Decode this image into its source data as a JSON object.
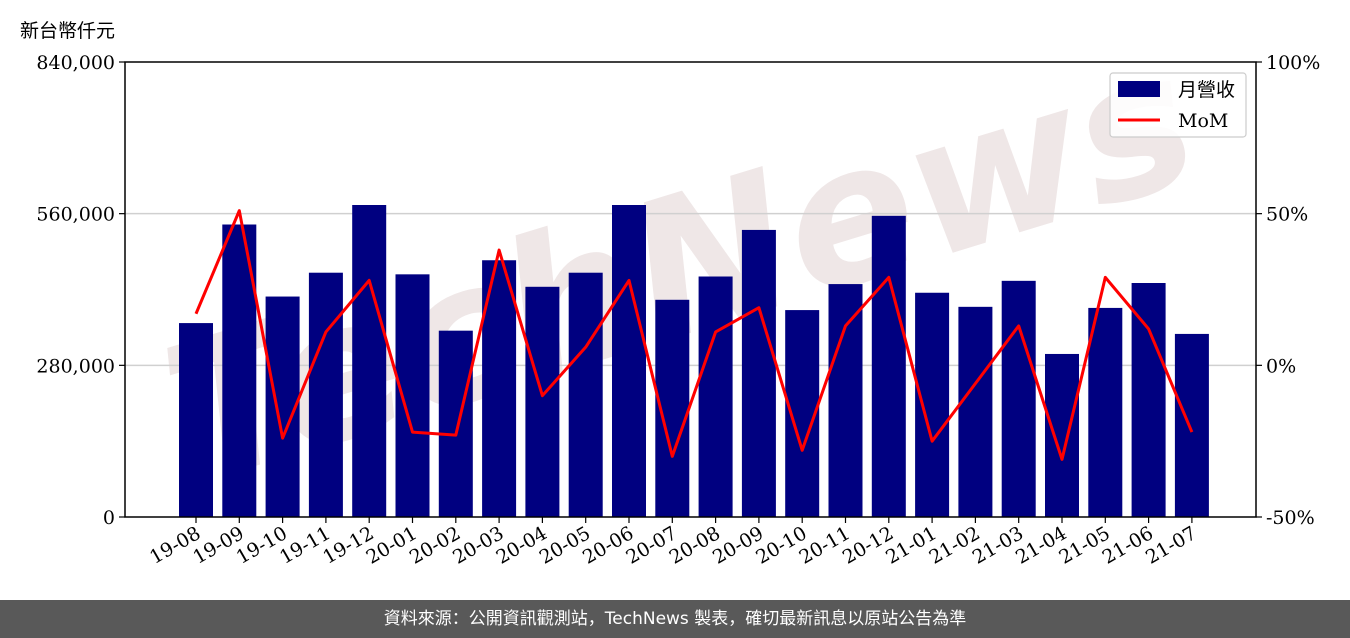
{
  "unit_label": "新台幣仟元",
  "footer_text": "資料來源：公開資訊觀測站，TechNews 製表，確切最新訊息以原站公告為準",
  "watermark": "TechNews",
  "colors": {
    "bar": "#000080",
    "line": "#ff0000",
    "watermark": "#e8e0e0"
  },
  "chart_data": {
    "type": "bar",
    "categories": [
      "19-08",
      "19-09",
      "19-10",
      "19-11",
      "19-12",
      "20-01",
      "20-02",
      "20-03",
      "20-04",
      "20-05",
      "20-06",
      "20-07",
      "20-08",
      "20-09",
      "20-10",
      "20-11",
      "20-12",
      "21-01",
      "21-02",
      "21-03",
      "21-04",
      "21-05",
      "21-06",
      "21-07"
    ],
    "series": [
      {
        "name": "月營收",
        "type": "bar",
        "axis": "left",
        "values": [
          358000,
          540000,
          407000,
          451000,
          576000,
          448000,
          344000,
          474000,
          425000,
          451000,
          576000,
          401000,
          444000,
          530000,
          382000,
          430000,
          556000,
          414000,
          388000,
          436000,
          301000,
          386000,
          432000,
          338000
        ]
      },
      {
        "name": "MoM",
        "type": "line",
        "axis": "right",
        "values": [
          17,
          51,
          -24,
          11,
          28,
          -22,
          -23,
          38,
          -10,
          6,
          28,
          -30,
          11,
          19,
          -28,
          13,
          29,
          -25,
          -6,
          13,
          -31,
          29,
          12,
          -22
        ]
      }
    ],
    "left_axis": {
      "ylim": [
        0,
        840000
      ],
      "ticks": [
        "0",
        "280,000",
        "560,000",
        "840,000"
      ],
      "tick_values": [
        0,
        280000,
        560000,
        840000
      ]
    },
    "right_axis": {
      "ylim": [
        -50,
        100
      ],
      "ticks": [
        "-50%",
        "0%",
        "50%",
        "100%"
      ],
      "tick_values": [
        -50,
        0,
        50,
        100
      ]
    },
    "grid": "horizontal",
    "legend": "top-right"
  }
}
